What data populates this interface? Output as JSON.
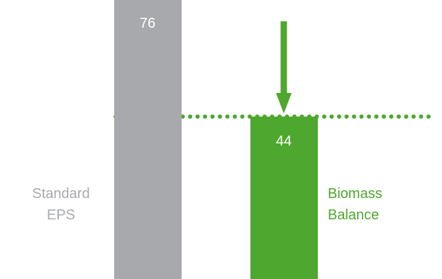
{
  "chart_data": {
    "type": "bar",
    "categories": [
      "Standard EPS",
      "Biomass Balance"
    ],
    "category_label_lines": [
      [
        "Standard",
        "EPS"
      ],
      [
        "Biomass",
        "Balance"
      ]
    ],
    "values": [
      76,
      44
    ],
    "value_labels": [
      "76",
      "44"
    ],
    "colors": [
      "#a7a9ac",
      "#4ea72e"
    ],
    "reference_lines": [
      {
        "value": 76,
        "style": "dotted",
        "color": "#a7a9ac"
      },
      {
        "value": 44,
        "style": "dotted",
        "color": "#4ea72e"
      }
    ],
    "annotation": {
      "type": "down-arrow",
      "from": 76,
      "to": 44,
      "color": "#4ea72e"
    },
    "title": "",
    "xlabel": "",
    "ylabel": "",
    "grid": false,
    "legend": "none"
  }
}
